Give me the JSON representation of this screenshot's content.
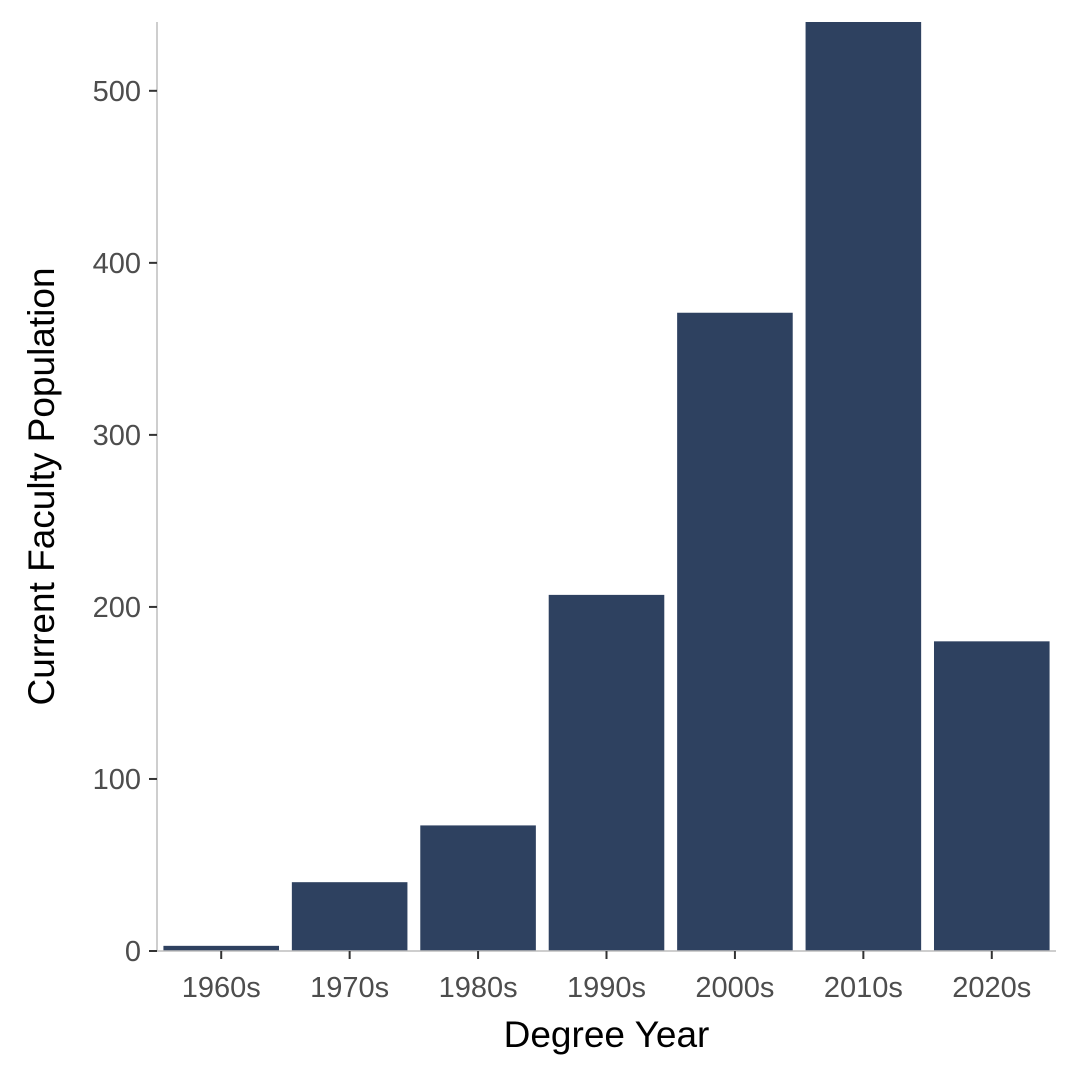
{
  "chart_data": {
    "type": "bar",
    "title": "",
    "xlabel": "Degree Year",
    "ylabel": "Current Faculty Population",
    "categories": [
      "1960s",
      "1970s",
      "1980s",
      "1990s",
      "2000s",
      "2010s",
      "2020s"
    ],
    "values": [
      3,
      40,
      73,
      207,
      371,
      540,
      180
    ],
    "ylim": [
      0,
      540
    ],
    "yticks": [
      0,
      100,
      200,
      300,
      400,
      500
    ],
    "bar_color": "#2e4160",
    "grid": false,
    "legend": "none"
  }
}
